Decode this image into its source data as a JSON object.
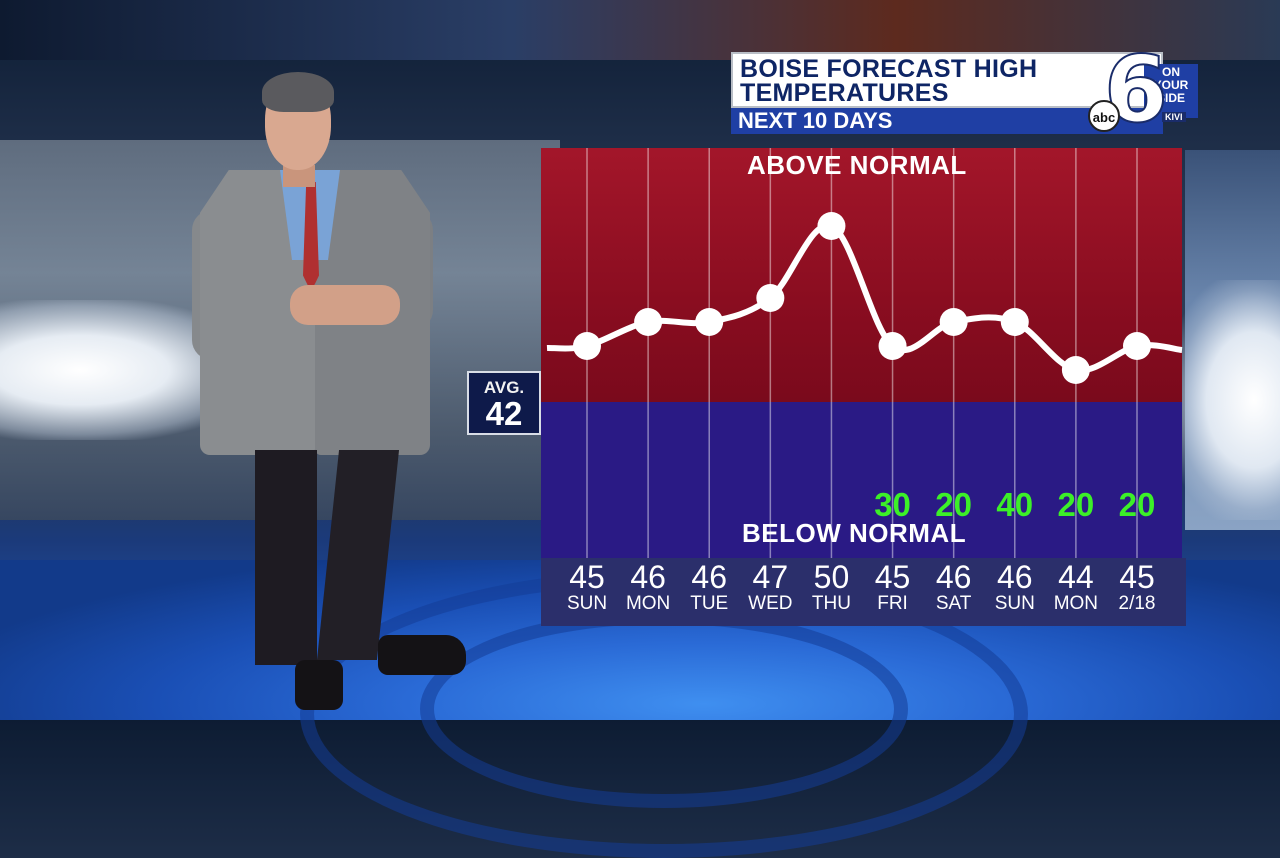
{
  "title": {
    "line1": "BOISE FORECAST HIGH",
    "line2": "TEMPERATURES",
    "subtitle": "NEXT 10 DAYS"
  },
  "logo": {
    "number": "6",
    "network": "abc",
    "tagline_1": "ON",
    "tagline_2": "YOUR",
    "tagline_3": "SIDE",
    "station": "KIVI"
  },
  "average": {
    "label": "AVG.",
    "value": "42"
  },
  "zones": {
    "above": "ABOVE NORMAL",
    "below": "BELOW NORMAL"
  },
  "colors": {
    "above_zone": "#8a0d20",
    "below_zone": "#2a1a85",
    "line": "#ffffff",
    "precip": "#3cf028",
    "title_text": "#0e2565",
    "subtitle_bar": "#1f3fa4"
  },
  "chart_data": {
    "type": "line",
    "categories": [
      "SUN",
      "MON",
      "TUE",
      "WED",
      "THU",
      "FRI",
      "SAT",
      "SUN",
      "MON",
      "2/18"
    ],
    "values": [
      45,
      46,
      46,
      47,
      50,
      45,
      46,
      46,
      44,
      45
    ],
    "value_labels": [
      "45",
      "46",
      "46",
      "47",
      "50",
      "45",
      "46",
      "46",
      "44",
      "45"
    ],
    "precip_chance": [
      "",
      "",
      "",
      "",
      "",
      "30",
      "20",
      "40",
      "20",
      "20"
    ],
    "normal": 42,
    "ylim": [
      35,
      53
    ],
    "title": "BOISE FORECAST HIGH TEMPERATURES",
    "xlabel": "",
    "ylabel": "",
    "grid": true
  }
}
